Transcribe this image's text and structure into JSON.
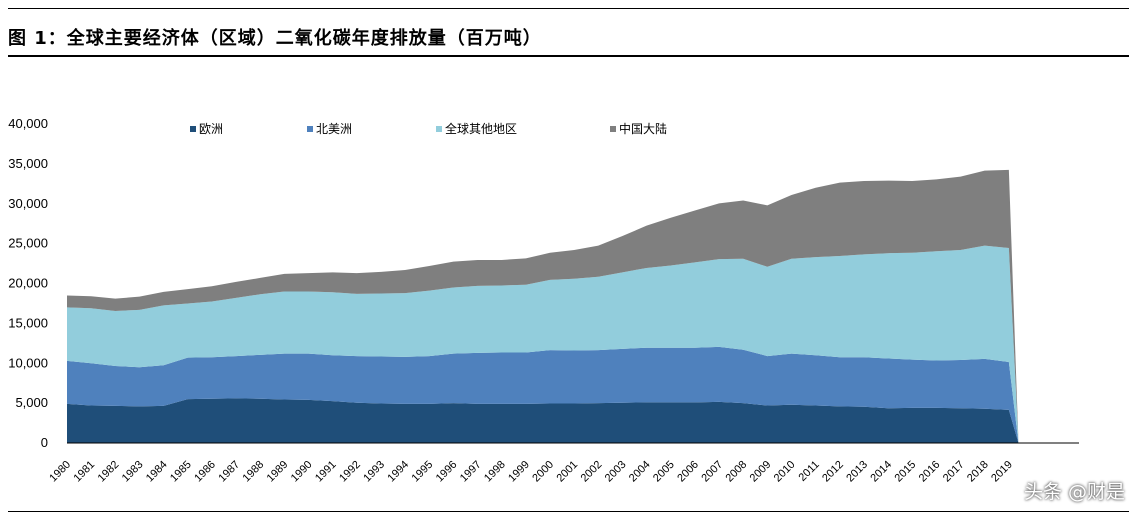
{
  "header": {
    "title": "图 1：全球主要经济体（区域）二氧化碳年度排放量（百万吨）"
  },
  "watermark": "头条 @财是",
  "chart_data": {
    "type": "area",
    "stacked": true,
    "title": "",
    "xlabel": "",
    "ylabel": "",
    "ylim": [
      0,
      40000
    ],
    "yticks": [
      "0",
      "5,000",
      "10,000",
      "15,000",
      "20,000",
      "25,000",
      "30,000",
      "35,000",
      "40,000"
    ],
    "grid": false,
    "legend_position": "top",
    "categories": [
      "1980",
      "1981",
      "1982",
      "1983",
      "1984",
      "1985",
      "1986",
      "1987",
      "1988",
      "1989",
      "1990",
      "1991",
      "1992",
      "1993",
      "1994",
      "1995",
      "1996",
      "1997",
      "1998",
      "1999",
      "2000",
      "2001",
      "2002",
      "2003",
      "2004",
      "2005",
      "2006",
      "2007",
      "2008",
      "2009",
      "2010",
      "2011",
      "2012",
      "2013",
      "2014",
      "2015",
      "2016",
      "2017",
      "2018",
      "2019"
    ],
    "series": [
      {
        "name": "欧洲",
        "color": "#1f4e79",
        "values": [
          4900,
          4700,
          4650,
          4600,
          4650,
          5500,
          5550,
          5600,
          5550,
          5450,
          5400,
          5250,
          5050,
          4950,
          4900,
          4900,
          5000,
          4900,
          4900,
          4900,
          4950,
          4950,
          5000,
          5050,
          5100,
          5100,
          5100,
          5150,
          5000,
          4700,
          4800,
          4700,
          4600,
          4550,
          4350,
          4400,
          4400,
          4350,
          4300,
          4150
        ]
      },
      {
        "name": "北美洲",
        "color": "#4f81bd",
        "values": [
          5400,
          5300,
          5000,
          4900,
          5100,
          5200,
          5200,
          5300,
          5500,
          5750,
          5800,
          5750,
          5850,
          5900,
          5900,
          6000,
          6200,
          6400,
          6450,
          6450,
          6700,
          6650,
          6650,
          6750,
          6850,
          6850,
          6850,
          6900,
          6700,
          6200,
          6400,
          6300,
          6150,
          6200,
          6250,
          6050,
          5950,
          6050,
          6250,
          6000
        ]
      },
      {
        "name": "全球其他地区",
        "color": "#92cddc",
        "values": [
          6700,
          6900,
          6900,
          7200,
          7500,
          6800,
          7000,
          7300,
          7600,
          7800,
          7800,
          7900,
          7800,
          7900,
          8000,
          8200,
          8300,
          8400,
          8400,
          8500,
          8800,
          9000,
          9200,
          9600,
          10000,
          10300,
          10700,
          11000,
          11400,
          11200,
          11900,
          12300,
          12700,
          12900,
          13200,
          13400,
          13700,
          13800,
          14200,
          14300
        ]
      },
      {
        "name": "中国大陆",
        "color": "#7f7f7f",
        "values": [
          1500,
          1500,
          1550,
          1650,
          1700,
          1800,
          1900,
          2000,
          2050,
          2200,
          2300,
          2500,
          2600,
          2700,
          2900,
          3100,
          3250,
          3250,
          3200,
          3300,
          3400,
          3600,
          3900,
          4550,
          5300,
          6000,
          6500,
          7000,
          7300,
          7700,
          8000,
          8700,
          9200,
          9200,
          9100,
          9000,
          9000,
          9200,
          9400,
          9800
        ]
      }
    ]
  }
}
